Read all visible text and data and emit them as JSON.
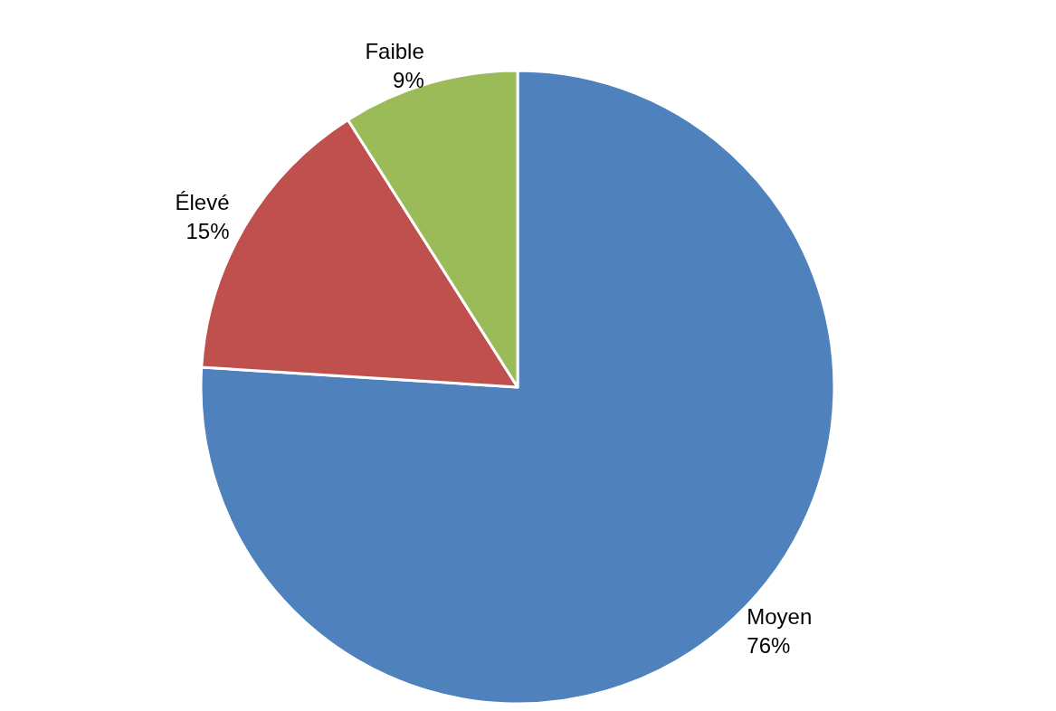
{
  "chart_data": {
    "type": "pie",
    "categories": [
      "Moyen",
      "Élevé",
      "Faible"
    ],
    "values": [
      76,
      15,
      9
    ],
    "colors": [
      "#4f81bd",
      "#c0504d",
      "#9bbb59"
    ],
    "value_labels": [
      "76%",
      "15%",
      "9%"
    ],
    "legend": false
  }
}
